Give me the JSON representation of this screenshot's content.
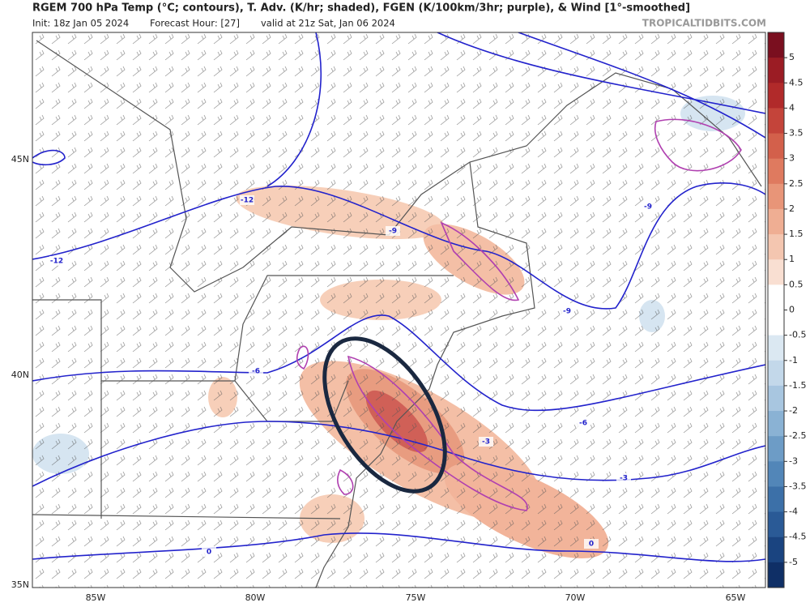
{
  "header": {
    "title": "RGEM 700 hPa Temp (°C; contours), T. Adv. (K/hr; shaded), FGEN (K/100km/3hr; purple), & Wind [1°-smoothed]",
    "init": "Init: 18z Jan 05 2024",
    "forecast_hour": "Forecast Hour: [27]",
    "valid": "valid at 21z Sat, Jan 06 2024",
    "source": "TROPICALTIDBITS.COM"
  },
  "map": {
    "lat_labels": [
      "45N",
      "40N",
      "35N"
    ],
    "lon_labels": [
      "85W",
      "80W",
      "75W",
      "70W",
      "65W"
    ],
    "contour_labels": [
      "-12",
      "-12",
      "-9",
      "-9",
      "-9",
      "-6",
      "-6",
      "-3",
      "-3",
      "0",
      "0"
    ]
  },
  "colorbar": {
    "labels": [
      "5",
      "4.5",
      "4",
      "3.5",
      "3",
      "2.5",
      "2",
      "1.5",
      "1",
      "0.5",
      "0",
      "-0.5",
      "-1",
      "-1.5",
      "-2",
      "-2.5",
      "-3",
      "-3.5",
      "-4",
      "-4.5",
      "-5"
    ]
  }
}
